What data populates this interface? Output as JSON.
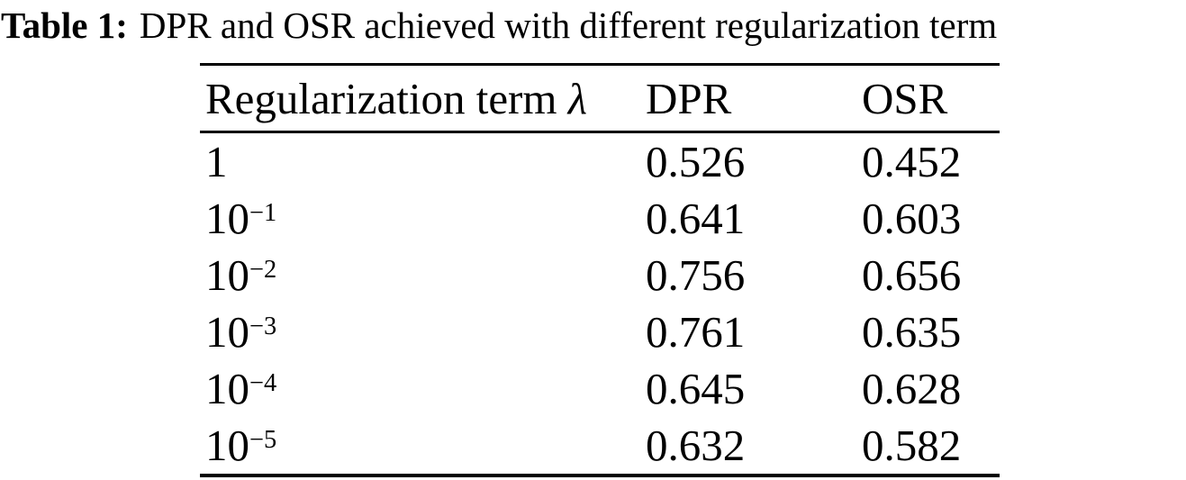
{
  "caption": {
    "label": "Table 1:",
    "text": "DPR and OSR achieved with different regularization term"
  },
  "table": {
    "header": {
      "col1_text": "Regularization term",
      "col1_symbol": "λ",
      "col2": "DPR",
      "col3": "OSR"
    },
    "rows": [
      {
        "lambda_base": "1",
        "lambda_exp": "",
        "dpr": "0.526",
        "osr": "0.452"
      },
      {
        "lambda_base": "10",
        "lambda_exp": "−1",
        "dpr": "0.641",
        "osr": "0.603"
      },
      {
        "lambda_base": "10",
        "lambda_exp": "−2",
        "dpr": "0.756",
        "osr": "0.656"
      },
      {
        "lambda_base": "10",
        "lambda_exp": "−3",
        "dpr": "0.761",
        "osr": "0.635"
      },
      {
        "lambda_base": "10",
        "lambda_exp": "−4",
        "dpr": "0.645",
        "osr": "0.628"
      },
      {
        "lambda_base": "10",
        "lambda_exp": "−5",
        "dpr": "0.632",
        "osr": "0.582"
      }
    ]
  },
  "colors": {
    "text": "#000000",
    "background": "#ffffff",
    "rule": "#000000"
  }
}
